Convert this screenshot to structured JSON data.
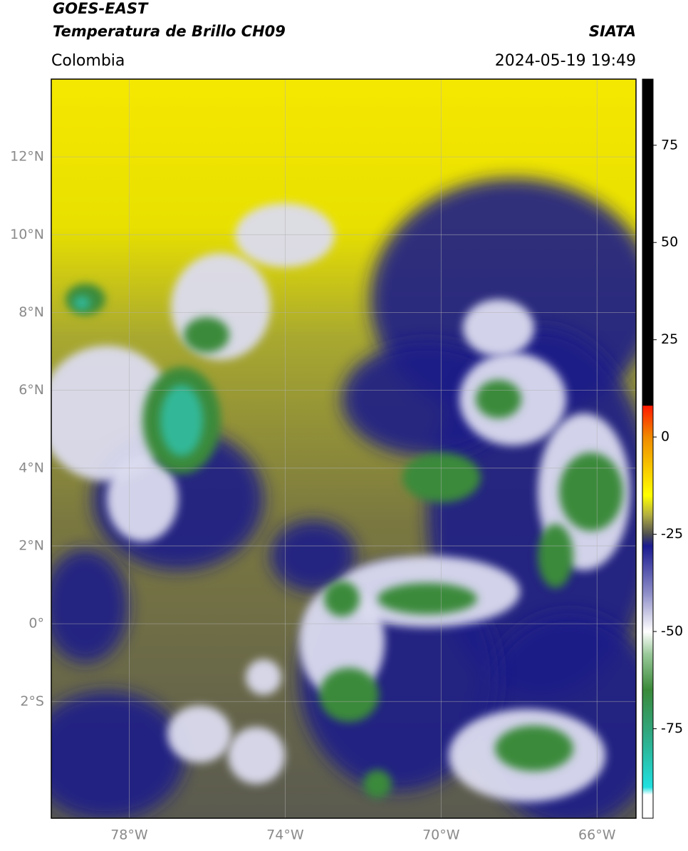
{
  "header": {
    "source": "GOES-EAST",
    "product": "Temperatura de Brillo CH09",
    "agency": "SIATA",
    "region": "Colombia",
    "datetime": "2024-05-19 19:49"
  },
  "map": {
    "xlim": [
      -80,
      -65
    ],
    "ylim": [
      -5,
      14
    ],
    "xticks": [
      {
        "value": -78,
        "label": "78°W"
      },
      {
        "value": -74,
        "label": "74°W"
      },
      {
        "value": -70,
        "label": "70°W"
      },
      {
        "value": -66,
        "label": "66°W"
      }
    ],
    "yticks": [
      {
        "value": 12,
        "label": "12°N"
      },
      {
        "value": 10,
        "label": "10°N"
      },
      {
        "value": 8,
        "label": "8°N"
      },
      {
        "value": 6,
        "label": "6°N"
      },
      {
        "value": 4,
        "label": "4°N"
      },
      {
        "value": 2,
        "label": "2°N"
      },
      {
        "value": 0,
        "label": "0°"
      },
      {
        "value": -2,
        "label": "2°S"
      }
    ],
    "grid": true
  },
  "colorbar": {
    "lim": [
      -98,
      92
    ],
    "ticks": [
      75,
      50,
      25,
      0,
      -25,
      -50,
      -75
    ],
    "colormap": [
      {
        "value": 92,
        "color": "#000000"
      },
      {
        "value": 8.1,
        "color": "#000000"
      },
      {
        "value": 8,
        "color": "#ff1a00"
      },
      {
        "value": 0,
        "color": "#f08a00"
      },
      {
        "value": -15,
        "color": "#ffff00"
      },
      {
        "value": -20,
        "color": "#b4b040"
      },
      {
        "value": -25,
        "color": "#505050"
      },
      {
        "value": -28,
        "color": "#1a1a90"
      },
      {
        "value": -40,
        "color": "#8c8cc8"
      },
      {
        "value": -50,
        "color": "#ffffff"
      },
      {
        "value": -56,
        "color": "#98c898"
      },
      {
        "value": -65,
        "color": "#3a8a3a"
      },
      {
        "value": -76,
        "color": "#30a880"
      },
      {
        "value": -90,
        "color": "#20e0e0"
      },
      {
        "value": -92,
        "color": "#ffffff"
      },
      {
        "value": -98,
        "color": "#ffffff"
      }
    ]
  }
}
